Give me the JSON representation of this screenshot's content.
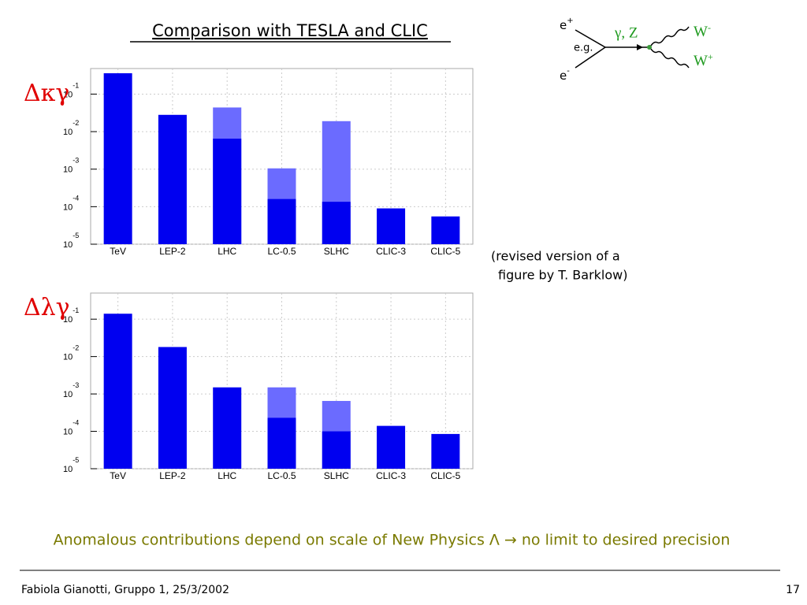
{
  "slide": {
    "title": "Comparison with TESLA and CLIC",
    "caption": [
      "(revised version of a",
      "figure by T. Barklow)"
    ],
    "statement": "Anomalous contributions depend on scale of New Physics Λ → no limit to desired precision",
    "footer": "Fabiola Gianotti,  Gruppo 1, 25/3/2002",
    "page": "17",
    "diagram": {
      "e_plus": {
        "base": "e",
        "sup": "+"
      },
      "e_minus": {
        "base": "e",
        "sup": "-"
      },
      "eg": "e.g.",
      "boson": "γ, Z",
      "w_minus": {
        "base": "W",
        "sup": "-"
      },
      "w_plus": {
        "base": "W",
        "sup": "+"
      }
    }
  },
  "chart_data": [
    {
      "type": "bar",
      "ylabel": "Δκγ",
      "log": true,
      "grid": true,
      "categories": [
        "TeV",
        "LEP-2",
        "LHC",
        "LC-0.5",
        "SLHC",
        "CLIC-3",
        "CLIC-5"
      ],
      "series": [
        {
          "color": "#6b6bff",
          "values": [
            null,
            null,
            0.044,
            0.00105,
            0.019,
            null,
            null
          ]
        },
        {
          "color": "#0000f0",
          "values": [
            0.36,
            0.028,
            0.0065,
            0.00016,
            0.000135,
            9e-05,
            5.5e-05
          ]
        }
      ],
      "ylim": [
        1e-05,
        0.48
      ],
      "yticks": [
        {
          "value": 0.1,
          "label": "10",
          "superscript": "-1"
        },
        {
          "value": 0.01,
          "label": "10",
          "superscript": "-2"
        },
        {
          "value": 0.001,
          "label": "10",
          "superscript": "-3"
        },
        {
          "value": 0.0001,
          "label": "10",
          "superscript": "-4"
        },
        {
          "value": 1e-05,
          "label": "10",
          "superscript": "-5"
        }
      ]
    },
    {
      "type": "bar",
      "ylabel": "Δλγ",
      "log": true,
      "grid": true,
      "categories": [
        "TeV",
        "LEP-2",
        "LHC",
        "LC-0.5",
        "SLHC",
        "CLIC-3",
        "CLIC-5"
      ],
      "series": [
        {
          "color": "#6b6bff",
          "values": [
            null,
            null,
            null,
            0.0015,
            0.00065,
            null,
            null
          ]
        },
        {
          "color": "#0000f0",
          "values": [
            0.14,
            0.018,
            0.0015,
            0.00023,
            0.0001,
            0.00014,
            8.5e-05
          ]
        }
      ],
      "ylim": [
        1e-05,
        0.5
      ],
      "yticks": [
        {
          "value": 0.1,
          "label": "10",
          "superscript": "-1"
        },
        {
          "value": 0.01,
          "label": "10",
          "superscript": "-2"
        },
        {
          "value": 0.001,
          "label": "10",
          "superscript": "-3"
        },
        {
          "value": 0.0001,
          "label": "10",
          "superscript": "-4"
        },
        {
          "value": 1e-05,
          "label": "10",
          "superscript": "-5"
        }
      ]
    }
  ]
}
